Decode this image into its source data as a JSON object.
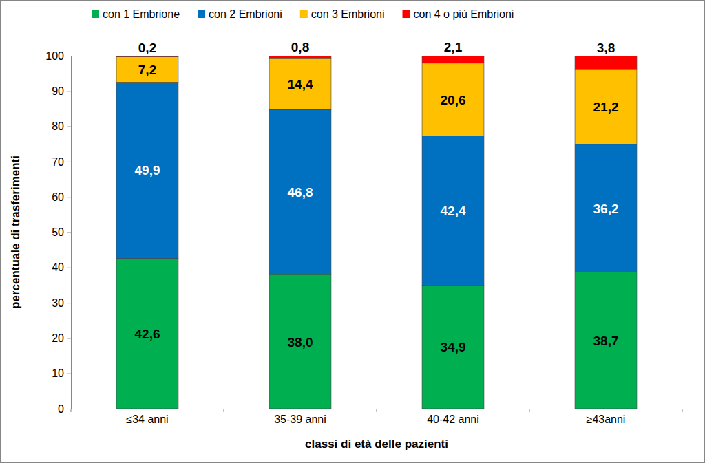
{
  "chart_data": {
    "type": "bar",
    "stacked": true,
    "data_labels": true,
    "grid": false,
    "legend": "top",
    "x_label": "classi di età delle pazienti",
    "y_label": "percentuale di trasferimenti",
    "categories": [
      "≤34 anni",
      "35-39 anni",
      "40-42 anni",
      "≥43anni"
    ],
    "ylim": [
      0,
      100
    ],
    "yticks": [
      0,
      10,
      20,
      30,
      40,
      50,
      60,
      70,
      80,
      90,
      100
    ],
    "series": [
      {
        "name": "con 1 Embrione",
        "color": "#00b050",
        "values": [
          42.6,
          38.0,
          34.9,
          38.7
        ],
        "value_labels": [
          "42,6",
          "38,0",
          "34,9",
          "38,7"
        ]
      },
      {
        "name": "con 2 Embrioni",
        "color": "#0070c0",
        "values": [
          49.9,
          46.8,
          42.4,
          36.2
        ],
        "value_labels": [
          "49,9",
          "46,8",
          "42,4",
          "36,2"
        ]
      },
      {
        "name": "con 3 Embrioni",
        "color": "#ffc000",
        "values": [
          7.2,
          14.4,
          20.6,
          21.2
        ],
        "value_labels": [
          "7,2",
          "14,4",
          "20,6",
          "21,2"
        ]
      },
      {
        "name": "con 4 o più Embrioni",
        "color": "#ff0000",
        "values": [
          0.2,
          0.8,
          2.1,
          3.8
        ],
        "value_labels": [
          "0,2",
          "0,8",
          "2,1",
          "3,8"
        ]
      }
    ]
  }
}
